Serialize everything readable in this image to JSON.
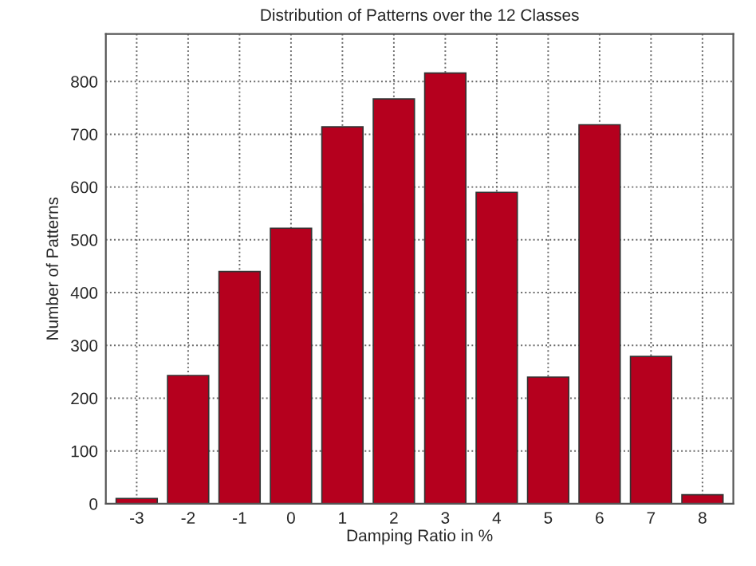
{
  "chart_data": {
    "type": "bar",
    "title": "Distribution of Patterns over the 12 Classes",
    "xlabel": "Damping Ratio in %",
    "ylabel": "Number of Patterns",
    "categories": [
      "-3",
      "-2",
      "-1",
      "0",
      "1",
      "2",
      "3",
      "4",
      "5",
      "6",
      "7",
      "8"
    ],
    "values": [
      10,
      243,
      440,
      522,
      714,
      767,
      816,
      590,
      240,
      718,
      279,
      17
    ],
    "color": "#b5001e",
    "ylim": [
      0,
      890
    ],
    "yticks": [
      0,
      100,
      200,
      300,
      400,
      500,
      600,
      700,
      800
    ],
    "grid": true
  }
}
